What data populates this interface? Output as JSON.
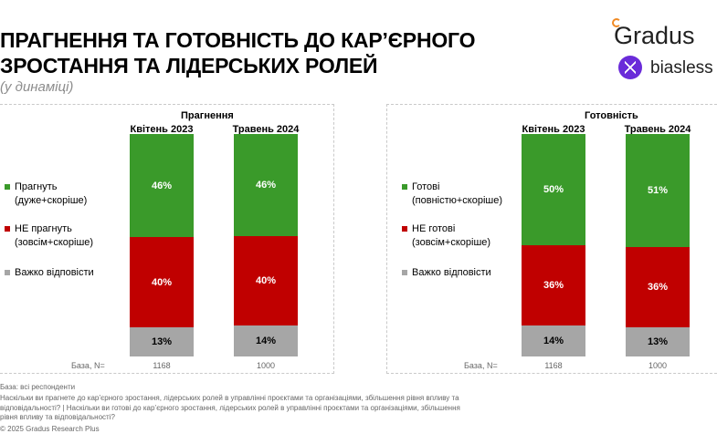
{
  "header": {
    "title_line1": "ПРАГНЕННЯ ТА ГОТОВНІСТЬ ДО КАР’ЄРНОГО",
    "title_line2": "ЗРОСТАННЯ ТА ЛІДЕРСЬКИХ РОЛЕЙ",
    "subtitle": "(у динаміці)"
  },
  "logos": {
    "gradus": "Gradus",
    "biasless": "biasless",
    "biasless_color": "#6a2bd9",
    "gradus_accent": "#f08a24"
  },
  "colors": {
    "green": "#3a9a2a",
    "red": "#c00000",
    "gray": "#a6a6a6"
  },
  "chart_data": [
    {
      "type": "bar",
      "stacked": true,
      "title": "Прагнення",
      "categories": [
        "Квітень 2023",
        "Травень 2024"
      ],
      "series": [
        {
          "name": "Прагнуть (дуже+скоріше)",
          "values": [
            46,
            46
          ],
          "labels": [
            "46%",
            "46%"
          ]
        },
        {
          "name": "НЕ прагнуть (зовсім+скоріше)",
          "values": [
            40,
            40
          ],
          "labels": [
            "40%",
            "40%"
          ]
        },
        {
          "name": "Важко відповісти",
          "values": [
            13,
            14
          ],
          "labels": [
            "13%",
            "14%"
          ]
        }
      ],
      "legend_lines": [
        [
          "Прагнуть",
          "(дуже+скоріше)"
        ],
        [
          "НЕ прагнуть",
          "(зовсім+скоріше)"
        ],
        [
          "Важко відповісти"
        ]
      ],
      "base_label": "База, N=",
      "base_values": [
        "1168",
        "1000"
      ]
    },
    {
      "type": "bar",
      "stacked": true,
      "title": "Готовність",
      "categories": [
        "Квітень 2023",
        "Травень 2024"
      ],
      "series": [
        {
          "name": "Готові (повністю+скоріше)",
          "values": [
            50,
            51
          ],
          "labels": [
            "50%",
            "51%"
          ]
        },
        {
          "name": "НЕ готові (зовсім+скоріше)",
          "values": [
            36,
            36
          ],
          "labels": [
            "36%",
            "36%"
          ]
        },
        {
          "name": "Важко відповісти",
          "values": [
            14,
            13
          ],
          "labels": [
            "14%",
            "13%"
          ]
        }
      ],
      "legend_lines": [
        [
          "Готові",
          "(повністю+скоріше)"
        ],
        [
          "НЕ готові",
          "(зовсім+скоріше)"
        ],
        [
          "Важко відповісти"
        ]
      ],
      "base_label": "База, N=",
      "base_values": [
        "1168",
        "1000"
      ]
    }
  ],
  "footnotes": [
    "База: всі респонденти",
    "Наскільки ви прагнете до кар’єрного зростання, лідерських ролей в управлінні проєктами та організаціями, збільшення рівня впливу та",
    "відповідальності? | Наскільки ви готові до кар’єрного зростання, лідерських ролей в управлінні проєктами та організаціями, збільшення",
    "рівня впливу та відповідальності?",
    "© 2025 Gradus Research Plus"
  ]
}
